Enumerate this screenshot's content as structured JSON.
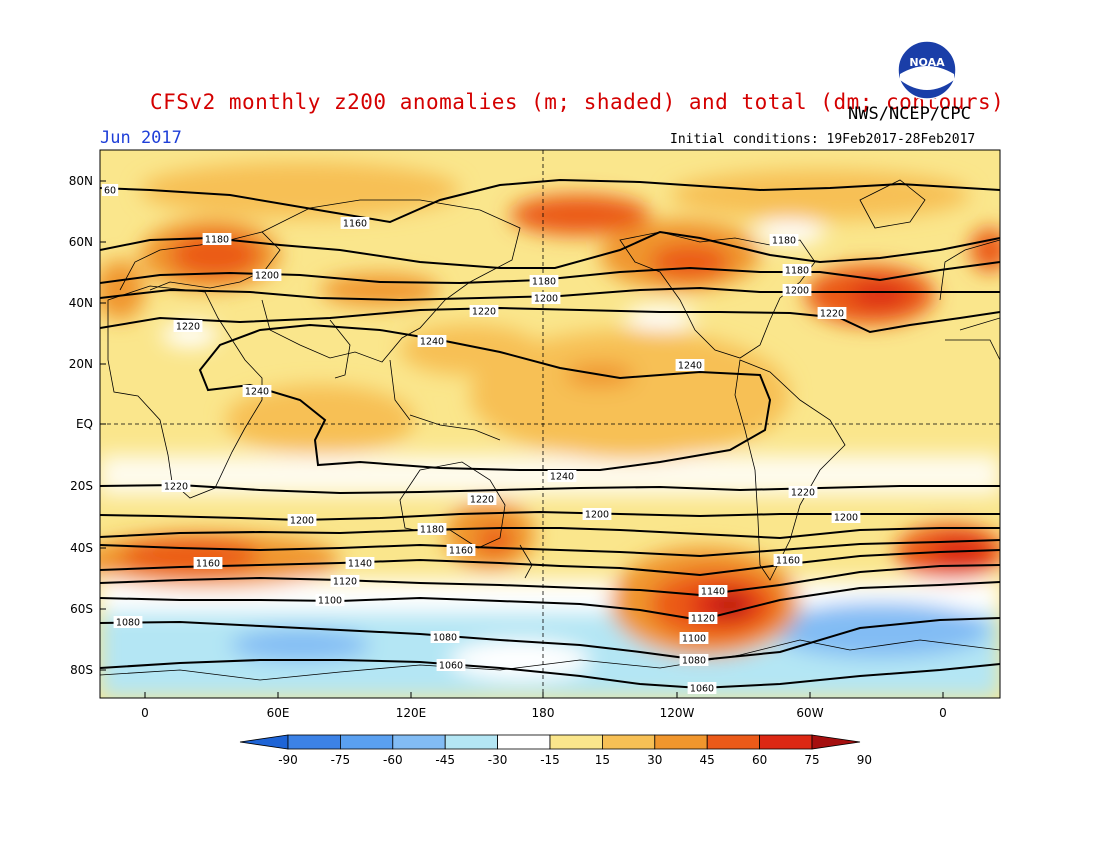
{
  "header": {
    "title": "CFSv2 monthly z200 anomalies (m; shaded) and total (dm; contours)",
    "org": "NWS/NCEP/CPC",
    "month": "Jun 2017",
    "initial_conditions": "Initial conditions: 19Feb2017-28Feb2017"
  },
  "logo": {
    "text": "NOAA",
    "icon": "noaa-logo"
  },
  "axes": {
    "lat_labels": [
      "80N",
      "60N",
      "40N",
      "20N",
      "EQ",
      "20S",
      "40S",
      "60S",
      "80S"
    ],
    "lon_labels": [
      "0",
      "60E",
      "120E",
      "180",
      "120W",
      "60W",
      "0"
    ]
  },
  "contour_labels": [
    "60",
    "1160",
    "1180",
    "1180",
    "1180",
    "1200",
    "1180",
    "1200",
    "1200",
    "1220",
    "1220",
    "1220",
    "1240",
    "1240",
    "1240",
    "1240",
    "1220",
    "1220",
    "1220",
    "1200",
    "1200",
    "1200",
    "1180",
    "1160",
    "1160",
    "1160",
    "1140",
    "1140",
    "1120",
    "1120",
    "1100",
    "1100",
    "1080",
    "1080",
    "1080",
    "1060",
    "1060"
  ],
  "colorbar": {
    "labels": [
      "-90",
      "-75",
      "-60",
      "-45",
      "-30",
      "-15",
      "15",
      "30",
      "45",
      "60",
      "75",
      "90"
    ],
    "colors": [
      "#1e64d6",
      "#3c82e6",
      "#5aa0f0",
      "#82bcf4",
      "#b4e6f4",
      "#ffffff",
      "#fae68c",
      "#f7c055",
      "#f0962d",
      "#eb5a19",
      "#dc2814",
      "#a50f0f"
    ]
  },
  "colors": {
    "title": "#d40000",
    "month": "#1f3fd8"
  }
}
